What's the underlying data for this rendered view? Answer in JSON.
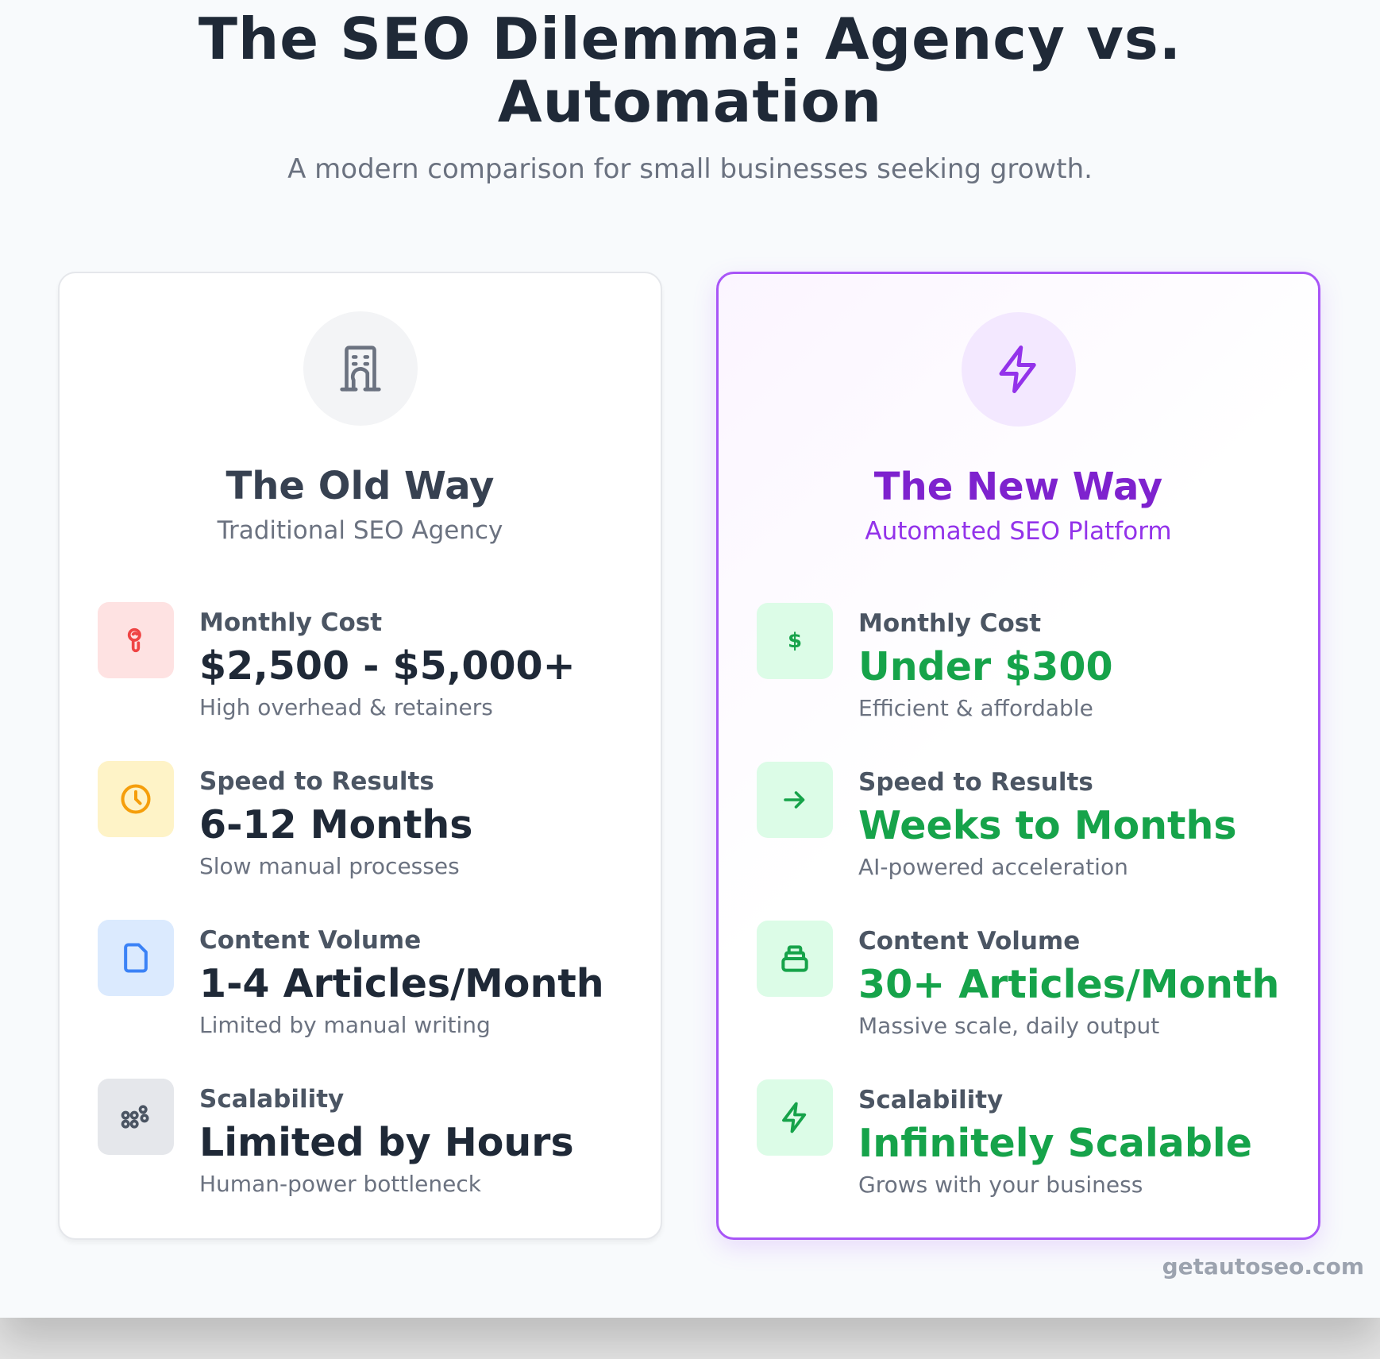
{
  "header": {
    "title_line1": "The SEO Dilemma: Agency vs.",
    "title_line2": "Automation",
    "subtitle": "A modern comparison for small businesses seeking growth."
  },
  "old_way": {
    "icon": "building-icon",
    "title": "The Old Way",
    "subtitle": "Traditional SEO Agency",
    "rows": [
      {
        "icon": "money-icon",
        "icon_color": "#ef4444",
        "icon_bg": "#fee2e2",
        "label": "Monthly Cost",
        "value": "$2,500 - $5,000+",
        "note": "High overhead & retainers"
      },
      {
        "icon": "clock-icon",
        "icon_color": "#f59e0b",
        "icon_bg": "#fef3c7",
        "label": "Speed to Results",
        "value": "6-12 Months",
        "note": "Slow manual processes"
      },
      {
        "icon": "document-icon",
        "icon_color": "#3b82f6",
        "icon_bg": "#dbeafe",
        "label": "Content Volume",
        "value": "1-4 Articles/Month",
        "note": "Limited by manual writing"
      },
      {
        "icon": "people-icon",
        "icon_color": "#4b5563",
        "icon_bg": "#e5e7eb",
        "label": "Scalability",
        "value": "Limited by Hours",
        "note": "Human-power bottleneck"
      }
    ]
  },
  "new_way": {
    "icon": "lightning-icon",
    "title": "The New Way",
    "subtitle": "Automated SEO Platform",
    "rows": [
      {
        "icon": "dollar-icon",
        "icon_color": "#16a34a",
        "icon_bg": "#dcfce7",
        "label": "Monthly Cost",
        "value": "Under $300",
        "note": "Efficient & affordable"
      },
      {
        "icon": "arrow-right-icon",
        "icon_color": "#16a34a",
        "icon_bg": "#dcfce7",
        "label": "Speed to Results",
        "value": "Weeks to Months",
        "note": "AI-powered acceleration"
      },
      {
        "icon": "stack-icon",
        "icon_color": "#16a34a",
        "icon_bg": "#dcfce7",
        "label": "Content Volume",
        "value": "30+ Articles/Month",
        "note": "Massive scale, daily output"
      },
      {
        "icon": "lightning-icon",
        "icon_color": "#16a34a",
        "icon_bg": "#dcfce7",
        "label": "Scalability",
        "value": "Infinitely Scalable",
        "note": "Grows with your business"
      }
    ]
  },
  "colors": {
    "accent": "#a855f7",
    "accent_text": "#7e22ce",
    "success": "#16a34a",
    "text": "#1f2937"
  },
  "watermark": "getautoseo.com"
}
